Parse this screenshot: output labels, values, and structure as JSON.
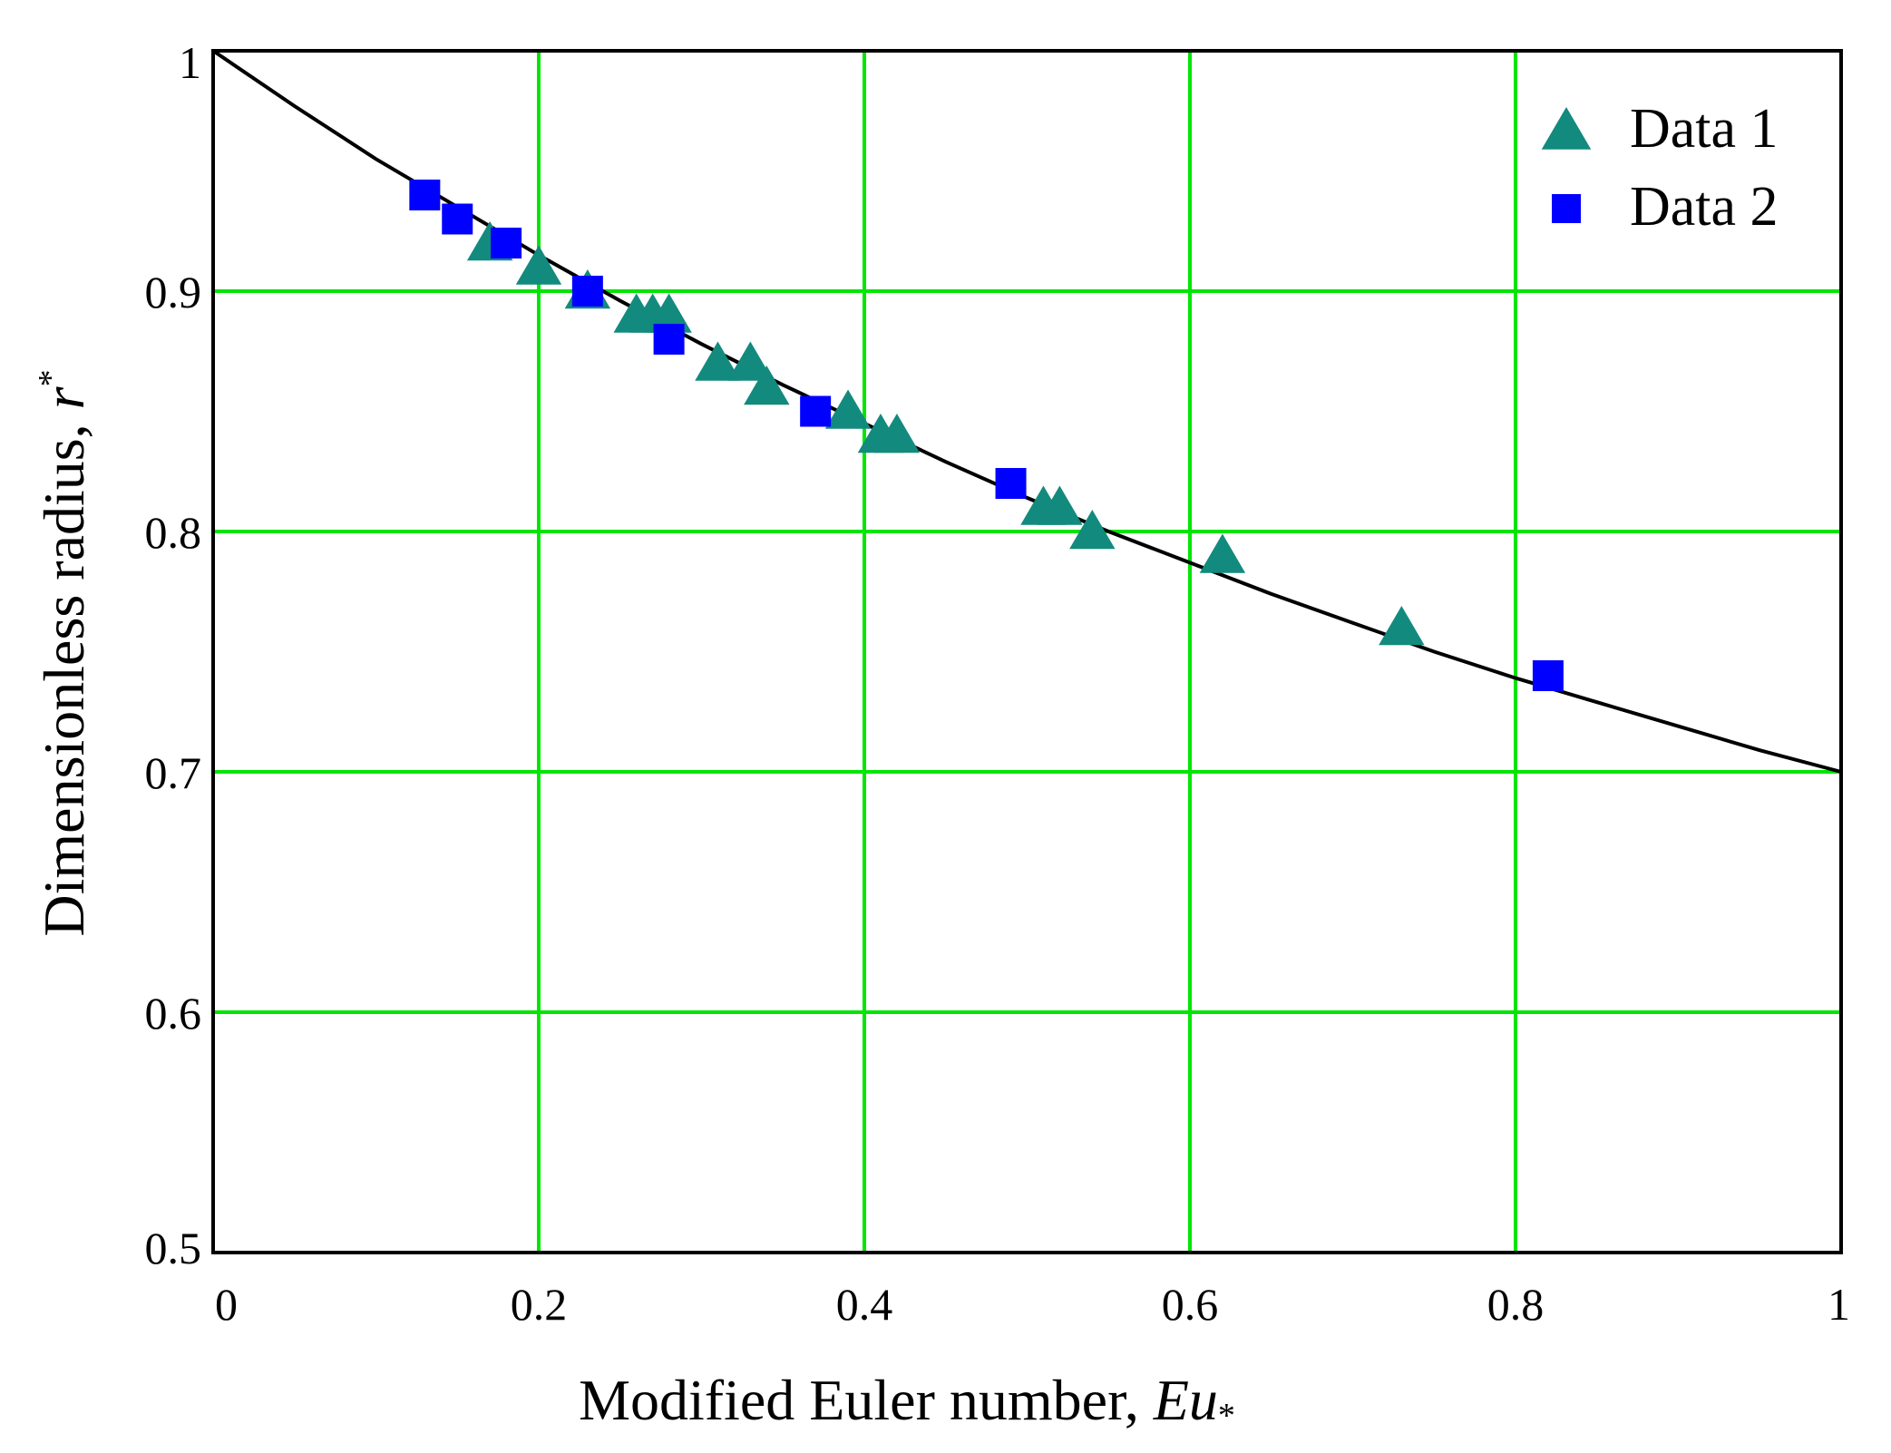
{
  "chart_data": {
    "type": "scatter",
    "xlabel": "Modified Euler number, ",
    "xlabel_symbol": "Eu",
    "xlabel_symbol_sub": "*",
    "ylabel": "Dimensionless radius, ",
    "ylabel_symbol": "r",
    "ylabel_symbol_sup": "*",
    "xlim": [
      0,
      1
    ],
    "ylim": [
      0.5,
      1
    ],
    "x_ticks": [
      "0",
      "0.2",
      "0.4",
      "0.6",
      "0.8",
      "1"
    ],
    "y_ticks": [
      "0.5",
      "0.6",
      "0.7",
      "0.8",
      "0.9",
      "1"
    ],
    "grid": true,
    "grid_color": "#00e600",
    "legend_position": "top-right",
    "series": [
      {
        "name": "Data 1",
        "marker": "triangle",
        "color": "#138a7e",
        "points": [
          {
            "x": 0.17,
            "y": 0.92
          },
          {
            "x": 0.2,
            "y": 0.91
          },
          {
            "x": 0.23,
            "y": 0.9
          },
          {
            "x": 0.26,
            "y": 0.89
          },
          {
            "x": 0.27,
            "y": 0.89
          },
          {
            "x": 0.28,
            "y": 0.89
          },
          {
            "x": 0.31,
            "y": 0.87
          },
          {
            "x": 0.33,
            "y": 0.87
          },
          {
            "x": 0.34,
            "y": 0.86
          },
          {
            "x": 0.39,
            "y": 0.85
          },
          {
            "x": 0.41,
            "y": 0.84
          },
          {
            "x": 0.42,
            "y": 0.84
          },
          {
            "x": 0.51,
            "y": 0.81
          },
          {
            "x": 0.52,
            "y": 0.81
          },
          {
            "x": 0.54,
            "y": 0.8
          },
          {
            "x": 0.62,
            "y": 0.79
          },
          {
            "x": 0.73,
            "y": 0.76
          }
        ]
      },
      {
        "name": "Data 2",
        "marker": "square",
        "color": "#0000ff",
        "points": [
          {
            "x": 0.13,
            "y": 0.94
          },
          {
            "x": 0.15,
            "y": 0.93
          },
          {
            "x": 0.18,
            "y": 0.92
          },
          {
            "x": 0.23,
            "y": 0.9
          },
          {
            "x": 0.28,
            "y": 0.88
          },
          {
            "x": 0.37,
            "y": 0.85
          },
          {
            "x": 0.49,
            "y": 0.82
          },
          {
            "x": 0.82,
            "y": 0.74
          }
        ]
      },
      {
        "marker": "line",
        "color": "#000000",
        "points": [
          {
            "x": 0.0,
            "y": 1.0
          },
          {
            "x": 0.05,
            "y": 0.977
          },
          {
            "x": 0.1,
            "y": 0.955
          },
          {
            "x": 0.15,
            "y": 0.935
          },
          {
            "x": 0.2,
            "y": 0.915
          },
          {
            "x": 0.25,
            "y": 0.896
          },
          {
            "x": 0.3,
            "y": 0.878
          },
          {
            "x": 0.35,
            "y": 0.861
          },
          {
            "x": 0.4,
            "y": 0.845
          },
          {
            "x": 0.45,
            "y": 0.829
          },
          {
            "x": 0.5,
            "y": 0.814
          },
          {
            "x": 0.55,
            "y": 0.8
          },
          {
            "x": 0.6,
            "y": 0.787
          },
          {
            "x": 0.65,
            "y": 0.774
          },
          {
            "x": 0.7,
            "y": 0.762
          },
          {
            "x": 0.75,
            "y": 0.75
          },
          {
            "x": 0.8,
            "y": 0.739
          },
          {
            "x": 0.85,
            "y": 0.729
          },
          {
            "x": 0.9,
            "y": 0.719
          },
          {
            "x": 0.95,
            "y": 0.709
          },
          {
            "x": 1.0,
            "y": 0.7
          }
        ]
      }
    ]
  }
}
